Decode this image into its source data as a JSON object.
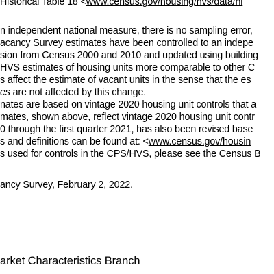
{
  "document": {
    "line1": {
      "pre": "Historical Table 18 <",
      "link": "www.census.gov/housing/hvs/data/hi"
    },
    "line2": "n independent national measure, there is no sampling error,",
    "line3": "acancy Survey estimates have been controlled to an indepe",
    "line4": "sion from Census 2000 and 2010 and updated using building",
    "line5": "HVS estimates of housing units more comparable to other C",
    "line6": "s affect the estimate of vacant units in the sense that the es",
    "line7": {
      "italic": "es",
      "rest": " are not affected by this change."
    },
    "line8": "nates are based on vintage 2020 housing unit controls that a",
    "line9": "mates, shown above, reflect vintage 2020 housing unit contr",
    "line10": "0 through the first quarter 2021, has also been revised base",
    "line11": {
      "pre": "s and definitions can be found at: <",
      "link": "www.census.gov/housin"
    },
    "line12": "s used for controls in the CPS/HVS, please see the Census B",
    "line13": "ancy Survey, February 2, 2022.",
    "branch": "arket Characteristics Branch"
  }
}
